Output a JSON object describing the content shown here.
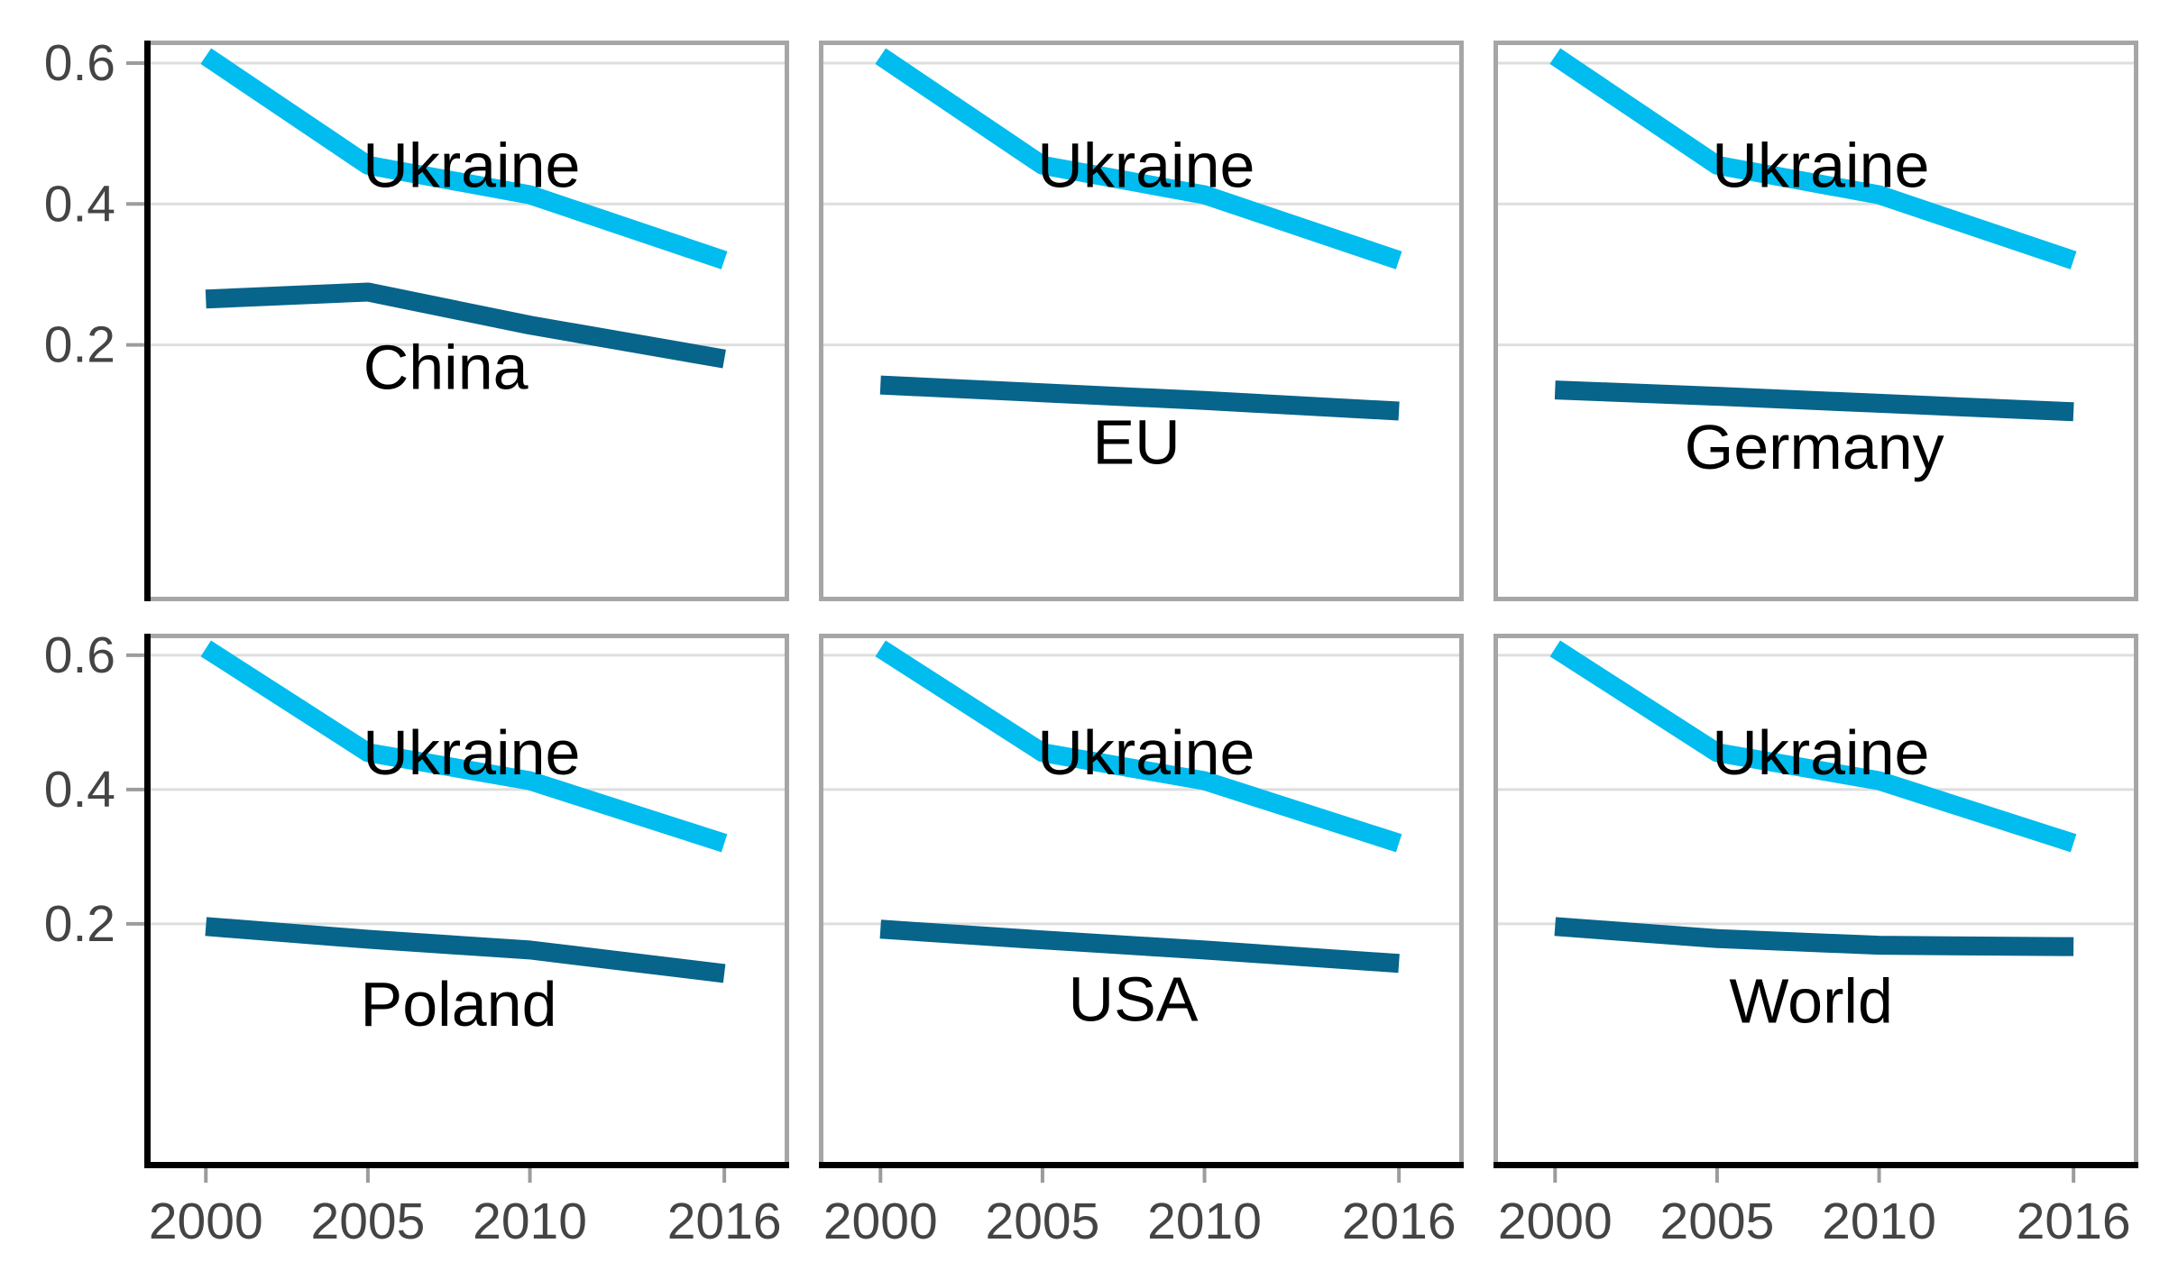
{
  "figure": {
    "background": "#ffffff",
    "description": "Small-multiples line chart figure comparing Ukraine with six other economies"
  },
  "chart_data": {
    "type": "line",
    "layout": "2 rows x 3 columns small multiples, shared axes",
    "x": [
      2000,
      2005,
      2010,
      2016
    ],
    "x_tick_labels": [
      "2000",
      "2005",
      "2010",
      "2016"
    ],
    "y_ticks": [
      0.2,
      0.4,
      0.6
    ],
    "y_tick_labels": [
      "0.2",
      "0.4",
      "0.6"
    ],
    "x_domain": [
      1998.1,
      2018.0
    ],
    "y_domain": [
      -0.164,
      0.632
    ],
    "grid": "horizontal gridlines only at 0.2 / 0.4 / 0.6",
    "legend": "none (direct labels inside panels)",
    "colors": {
      "ukraine_line": "#00BCEF",
      "comparison_line": "#07648A",
      "axis_text": "#444444",
      "annotation_text": "#000000",
      "panel_border": "#A6A6A6",
      "gridline": "#DEDEDE",
      "axis_line": "#000000",
      "tick_mark": "#9C9C9C"
    },
    "panels": [
      {
        "id": "china",
        "series": [
          {
            "name": "Ukraine",
            "color": "#00BCEF",
            "values": [
              0.61,
              0.455,
              0.413,
              0.32
            ]
          },
          {
            "name": "China",
            "color": "#07648A",
            "values": [
              0.265,
              0.275,
              0.228,
              0.18
            ]
          }
        ],
        "labels": [
          {
            "text": "Ukraine",
            "x": 2008.2,
            "y": 0.455
          },
          {
            "text": "China",
            "x": 2007.4,
            "y": 0.168
          }
        ]
      },
      {
        "id": "eu",
        "series": [
          {
            "name": "Ukraine",
            "color": "#00BCEF",
            "values": [
              0.61,
              0.455,
              0.413,
              0.32
            ]
          },
          {
            "name": "EU",
            "color": "#07648A",
            "values": [
              0.143,
              0.132,
              0.121,
              0.106
            ]
          }
        ],
        "labels": [
          {
            "text": "Ukraine",
            "x": 2008.2,
            "y": 0.455
          },
          {
            "text": "EU",
            "x": 2007.9,
            "y": 0.062
          }
        ]
      },
      {
        "id": "germany",
        "series": [
          {
            "name": "Ukraine",
            "color": "#00BCEF",
            "values": [
              0.61,
              0.455,
              0.413,
              0.32
            ]
          },
          {
            "name": "Germany",
            "color": "#07648A",
            "values": [
              0.136,
              0.127,
              0.117,
              0.105
            ]
          }
        ],
        "labels": [
          {
            "text": "Ukraine",
            "x": 2008.2,
            "y": 0.455
          },
          {
            "text": "Germany",
            "x": 2008.0,
            "y": 0.055
          }
        ]
      },
      {
        "id": "poland",
        "series": [
          {
            "name": "Ukraine",
            "color": "#00BCEF",
            "values": [
              0.61,
              0.455,
              0.413,
              0.32
            ]
          },
          {
            "name": "Poland",
            "color": "#07648A",
            "values": [
              0.196,
              0.177,
              0.161,
              0.126
            ]
          }
        ],
        "labels": [
          {
            "text": "Ukraine",
            "x": 2008.2,
            "y": 0.455
          },
          {
            "text": "Poland",
            "x": 2007.8,
            "y": 0.08
          }
        ]
      },
      {
        "id": "usa",
        "series": [
          {
            "name": "Ukraine",
            "color": "#00BCEF",
            "values": [
              0.61,
              0.455,
              0.413,
              0.32
            ]
          },
          {
            "name": "USA",
            "color": "#07648A",
            "values": [
              0.192,
              0.176,
              0.161,
              0.141
            ]
          }
        ],
        "labels": [
          {
            "text": "Ukraine",
            "x": 2008.2,
            "y": 0.455
          },
          {
            "text": "USA",
            "x": 2007.8,
            "y": 0.088
          }
        ]
      },
      {
        "id": "world",
        "series": [
          {
            "name": "Ukraine",
            "color": "#00BCEF",
            "values": [
              0.61,
              0.455,
              0.413,
              0.32
            ]
          },
          {
            "name": "World",
            "color": "#07648A",
            "values": [
              0.196,
              0.178,
              0.168,
              0.166
            ]
          }
        ],
        "labels": [
          {
            "text": "Ukraine",
            "x": 2008.2,
            "y": 0.455
          },
          {
            "text": "World",
            "x": 2007.9,
            "y": 0.085
          }
        ]
      }
    ]
  }
}
